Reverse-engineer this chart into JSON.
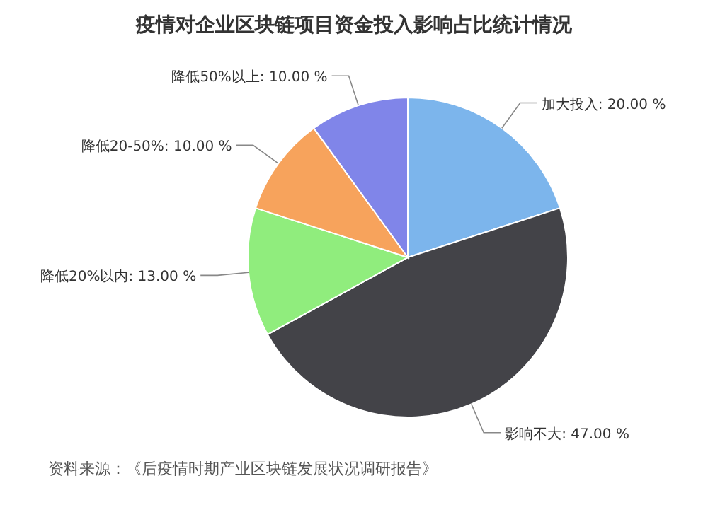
{
  "chart_data": {
    "type": "pie",
    "title": "疫情对企业区块链项目资金投入影响占比统计情况",
    "categories": [
      "加大投入",
      "影响不大",
      "降低20%以内",
      "降低20-50%",
      "降低50%以上"
    ],
    "values": [
      20,
      47,
      13,
      10,
      10
    ],
    "value_labels": [
      "20.00 %",
      "47.00 %",
      "13.00 %",
      "10.00 %",
      "10.00 %"
    ],
    "colors": [
      "#7cb5ec",
      "#434348",
      "#90ed7d",
      "#f7a35c",
      "#8085e9"
    ],
    "annotations": [
      "资料来源：《后疫情时期产业区块链发展状况调研报告》"
    ],
    "legend": false
  }
}
